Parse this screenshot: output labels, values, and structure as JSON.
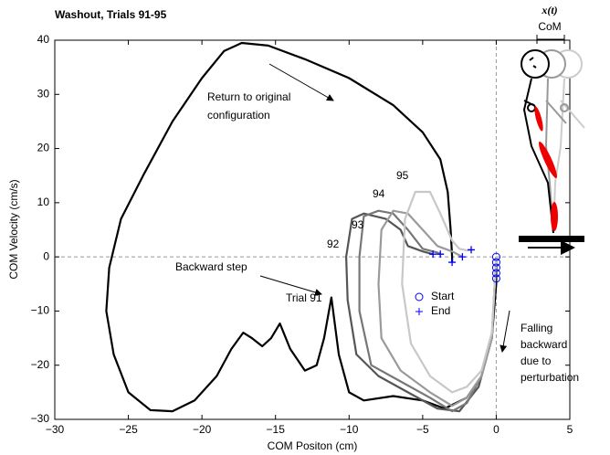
{
  "chart_data": {
    "type": "line",
    "title": "Washout, Trials 91-95",
    "x_label": "COM Positon (cm)",
    "y_label": "COM Velocity (cm/s)",
    "xlim": [
      -30,
      5
    ],
    "ylim": [
      -30,
      40
    ],
    "xticks": [
      -30,
      -25,
      -20,
      -15,
      -10,
      -5,
      0,
      5
    ],
    "yticks": [
      -30,
      -20,
      -10,
      0,
      10,
      20,
      30,
      40
    ],
    "series": [
      {
        "name": "Trial 91",
        "type": "line",
        "color": "#000000",
        "x": [
          0,
          0,
          -0.3,
          -1,
          -2,
          -3.5,
          -5,
          -7,
          -9,
          -10,
          -10.7,
          -11.2,
          -11.7,
          -12.2,
          -13,
          -14,
          -14.7,
          -15.3,
          -15.9,
          -16.6,
          -17.2,
          -18,
          -19,
          -20.5,
          -22,
          -23.5,
          -25,
          -26,
          -26.5,
          -26.3,
          -25.5,
          -24,
          -22,
          -20,
          -18.5,
          -17.3,
          -15.5,
          -13,
          -10,
          -7,
          -5,
          -3.8,
          -3.3,
          -3.1,
          -3,
          -3
        ],
        "values": [
          0,
          -5,
          -15,
          -22,
          -26,
          -28,
          -26.5,
          -25.7,
          -26.5,
          -25,
          -18,
          -7.5,
          -15,
          -20,
          -21,
          -17,
          -12.3,
          -15,
          -16.5,
          -15,
          -14,
          -17,
          -22,
          -26.5,
          -28.5,
          -28.3,
          -25,
          -18,
          -10,
          -2,
          7,
          15,
          25,
          33,
          38,
          39.5,
          39,
          36.5,
          33,
          28,
          23,
          18,
          12,
          5,
          0,
          -1
        ]
      },
      {
        "name": "92",
        "type": "line",
        "color": "#555555",
        "x": [
          0,
          -0.3,
          -1.2,
          -2.5,
          -4,
          -6,
          -8,
          -9.5,
          -10.1,
          -10.2,
          -9.8,
          -9,
          -7.5,
          -6.5,
          -6,
          -5,
          -4.3
        ],
        "values": [
          0,
          -15,
          -24,
          -28.5,
          -28,
          -25,
          -22,
          -18,
          -8,
          0,
          7,
          8,
          7,
          5,
          2,
          1,
          0.5
        ]
      },
      {
        "name": "93",
        "type": "line",
        "color": "#777777",
        "x": [
          0,
          -0.3,
          -1,
          -2,
          -3,
          -4.5,
          -6.5,
          -8.5,
          -9.3,
          -9.3,
          -9,
          -8,
          -7,
          -6,
          -5,
          -4,
          -3.8
        ],
        "values": [
          0,
          -15,
          -22,
          -27,
          -28.5,
          -26,
          -23,
          -20,
          -10,
          0,
          7.5,
          8.5,
          8,
          5,
          1.5,
          0.8,
          0.5
        ]
      },
      {
        "name": "94",
        "type": "line",
        "color": "#9a9a9a",
        "x": [
          0,
          -0.3,
          -1,
          -2,
          -3,
          -4.5,
          -6.5,
          -7.8,
          -8,
          -7.8,
          -7,
          -6,
          -5,
          -4,
          -3,
          -2.3
        ],
        "values": [
          0,
          -15,
          -22,
          -26,
          -27.5,
          -25,
          -21,
          -15,
          -5,
          5,
          8.5,
          8,
          5,
          2,
          1,
          0
        ]
      },
      {
        "name": "95",
        "type": "line",
        "color": "#c8c8c8",
        "x": [
          0,
          -0.3,
          -1,
          -2,
          -3,
          -4.5,
          -5.8,
          -6.4,
          -6.2,
          -5.5,
          -4.5,
          -3.8,
          -3,
          -2.5,
          -2,
          -1.7
        ],
        "values": [
          0,
          -14,
          -21,
          -24,
          -25,
          -22,
          -16,
          -5,
          7,
          12,
          12,
          8,
          3,
          1.5,
          1.2,
          1.3
        ]
      },
      {
        "name": "Start",
        "type": "scatter",
        "marker": "circle",
        "color": "#0000ff",
        "x": [
          0,
          0,
          0,
          0,
          0
        ],
        "values": [
          0,
          -1,
          -2,
          -3,
          -4
        ]
      },
      {
        "name": "End",
        "type": "scatter",
        "marker": "plus",
        "color": "#0000ff",
        "x": [
          -4.3,
          -3.8,
          -3,
          -2.3,
          -1.7
        ],
        "values": [
          0.5,
          0.5,
          -1,
          0,
          1.3
        ]
      }
    ],
    "annotations": {
      "return": [
        "Return to original",
        "configuration"
      ],
      "backward_step": "Backward step",
      "falling": [
        "Falling",
        "backward",
        "due to",
        "perturbation"
      ],
      "position_symbol": "x(t)",
      "com": "CoM"
    }
  }
}
